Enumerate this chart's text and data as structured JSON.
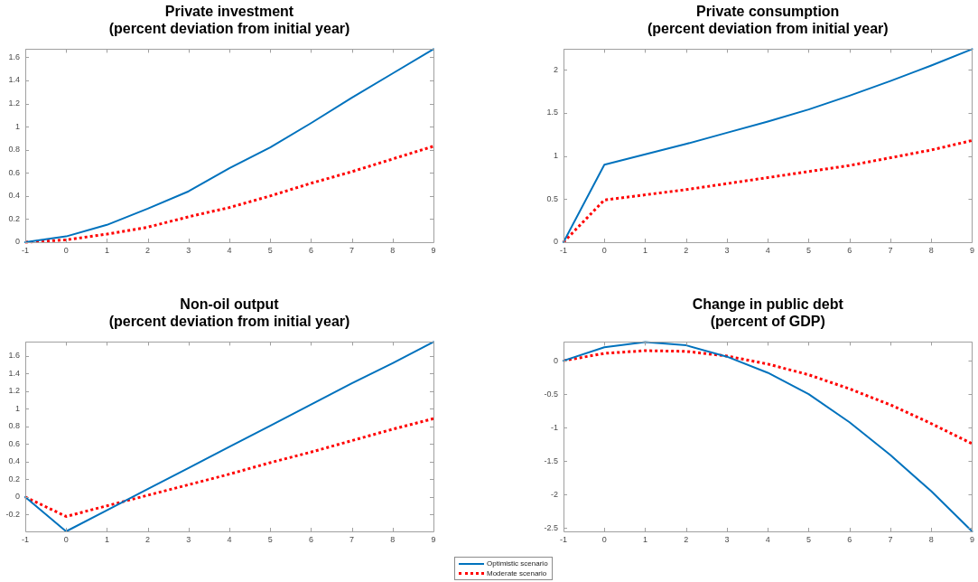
{
  "chart_data": [
    {
      "type": "line",
      "title": "Private investment",
      "subtitle": "(percent deviation from initial year)",
      "x": [
        -1,
        0,
        1,
        2,
        3,
        4,
        5,
        6,
        7,
        8,
        9
      ],
      "xlim": [
        -1,
        9
      ],
      "xticks": [
        -1,
        0,
        1,
        2,
        3,
        4,
        5,
        6,
        7,
        8,
        9
      ],
      "ylim": [
        0,
        1.67
      ],
      "yticks": [
        0,
        0.2,
        0.4,
        0.6,
        0.8,
        1,
        1.2,
        1.4,
        1.6
      ],
      "legend": "bottom",
      "series": [
        {
          "name": "Optimistic scenario",
          "color": "#0072bd",
          "line_style": "solid",
          "values": [
            0,
            0.05,
            0.15,
            0.29,
            0.44,
            0.64,
            0.82,
            1.03,
            1.25,
            1.46,
            1.67
          ]
        },
        {
          "name": "Moderate scenario",
          "color": "#ff0000",
          "line_style": "dotted",
          "values": [
            0,
            0.02,
            0.07,
            0.13,
            0.22,
            0.3,
            0.4,
            0.51,
            0.61,
            0.72,
            0.83
          ]
        }
      ]
    },
    {
      "type": "line",
      "title": "Private consumption",
      "subtitle": "(percent deviation from initial year)",
      "x": [
        -1,
        0,
        1,
        2,
        3,
        4,
        5,
        6,
        7,
        8,
        9
      ],
      "xlim": [
        -1,
        9
      ],
      "xticks": [
        -1,
        0,
        1,
        2,
        3,
        4,
        5,
        6,
        7,
        8,
        9
      ],
      "ylim": [
        0,
        2.24
      ],
      "yticks": [
        0,
        0.5,
        1,
        1.5,
        2
      ],
      "series": [
        {
          "color": "#0072bd",
          "line_style": "solid",
          "values": [
            0,
            0.9,
            1.02,
            1.14,
            1.27,
            1.4,
            1.54,
            1.7,
            1.87,
            2.05,
            2.24
          ]
        },
        {
          "color": "#ff0000",
          "line_style": "dotted",
          "values": [
            0,
            0.49,
            0.55,
            0.61,
            0.68,
            0.75,
            0.82,
            0.89,
            0.98,
            1.07,
            1.18
          ]
        }
      ]
    },
    {
      "type": "line",
      "title": "Non-oil output",
      "subtitle": "(percent deviation from initial year)",
      "x": [
        -1,
        0,
        1,
        2,
        3,
        4,
        5,
        6,
        7,
        8,
        9
      ],
      "xlim": [
        -1,
        9
      ],
      "xticks": [
        -1,
        0,
        1,
        2,
        3,
        4,
        5,
        6,
        7,
        8,
        9
      ],
      "ylim": [
        -0.39,
        1.76
      ],
      "yticks": [
        -0.2,
        0,
        0.2,
        0.4,
        0.6,
        0.8,
        1,
        1.2,
        1.4,
        1.6
      ],
      "series": [
        {
          "color": "#0072bd",
          "line_style": "solid",
          "values": [
            0,
            -0.39,
            -0.15,
            0.09,
            0.33,
            0.57,
            0.81,
            1.05,
            1.29,
            1.52,
            1.76
          ]
        },
        {
          "color": "#ff0000",
          "line_style": "dotted",
          "values": [
            0,
            -0.22,
            -0.1,
            0.02,
            0.14,
            0.26,
            0.39,
            0.51,
            0.64,
            0.77,
            0.89
          ]
        }
      ]
    },
    {
      "type": "line",
      "title": "Change in public debt",
      "subtitle": "(percent of GDP)",
      "x": [
        -1,
        0,
        1,
        2,
        3,
        4,
        5,
        6,
        7,
        8,
        9
      ],
      "xlim": [
        -1,
        9
      ],
      "xticks": [
        -1,
        0,
        1,
        2,
        3,
        4,
        5,
        6,
        7,
        8,
        9
      ],
      "ylim": [
        -2.55,
        0.28
      ],
      "yticks": [
        -2.5,
        -2,
        -1.5,
        -1,
        -0.5,
        0
      ],
      "series": [
        {
          "color": "#0072bd",
          "line_style": "solid",
          "values": [
            0,
            0.2,
            0.28,
            0.23,
            0.06,
            -0.18,
            -0.5,
            -0.92,
            -1.41,
            -1.95,
            -2.55
          ]
        },
        {
          "color": "#ff0000",
          "line_style": "dotted",
          "values": [
            0,
            0.11,
            0.15,
            0.14,
            0.07,
            -0.05,
            -0.21,
            -0.42,
            -0.66,
            -0.94,
            -1.24
          ]
        }
      ]
    }
  ]
}
